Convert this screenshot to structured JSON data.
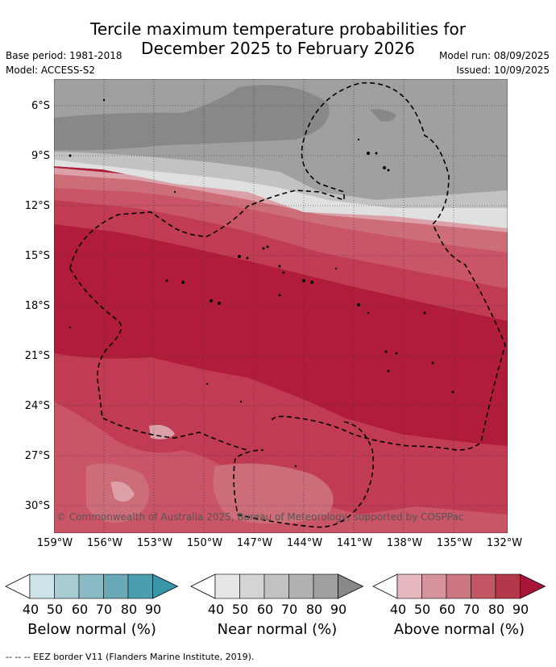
{
  "title_line1": "Tercile maximum temperature probabilities for",
  "title_line2": "December 2025 to February 2026",
  "base_period": "Base period: 1981-2018",
  "model": "Model: ACCESS-S2",
  "model_run": "Model run: 08/09/2025",
  "issued": "Issued: 10/09/2025",
  "copyright": "© Commonwealth of Australia 2025, Bureau of Meteorology, supported by COSPPac",
  "footer": "--  --  -- EEZ border V11 (Flanders Marine Institute, 2019).",
  "lat_labels": [
    "6°S",
    "9°S",
    "12°S",
    "15°S",
    "18°S",
    "21°S",
    "24°S",
    "27°S",
    "30°S"
  ],
  "lon_labels": [
    "159°W",
    "156°W",
    "153°W",
    "150°W",
    "147°W",
    "144°W",
    "141°W",
    "138°W",
    "135°W",
    "132°W"
  ],
  "colorbars": [
    {
      "label": "Below normal (%)",
      "ticks": [
        "40",
        "50",
        "60",
        "70",
        "80",
        "90"
      ],
      "colors": [
        "#ffffff",
        "#cde3e8",
        "#a9cbd2",
        "#88b9c4",
        "#6aa9b8",
        "#4b9db0",
        "#3995a8"
      ]
    },
    {
      "label": "Near normal (%)",
      "ticks": [
        "40",
        "50",
        "60",
        "70",
        "80",
        "90"
      ],
      "colors": [
        "#ffffff",
        "#e6e6e6",
        "#d4d4d4",
        "#c2c2c2",
        "#b1b1b1",
        "#a0a0a0",
        "#888888"
      ]
    },
    {
      "label": "Above normal (%)",
      "ticks": [
        "40",
        "50",
        "60",
        "70",
        "80",
        "90"
      ],
      "colors": [
        "#ffffff",
        "#e5b8bf",
        "#d6949c",
        "#cc7780",
        "#c25763",
        "#b5384a",
        "#a8153a"
      ]
    }
  ]
}
